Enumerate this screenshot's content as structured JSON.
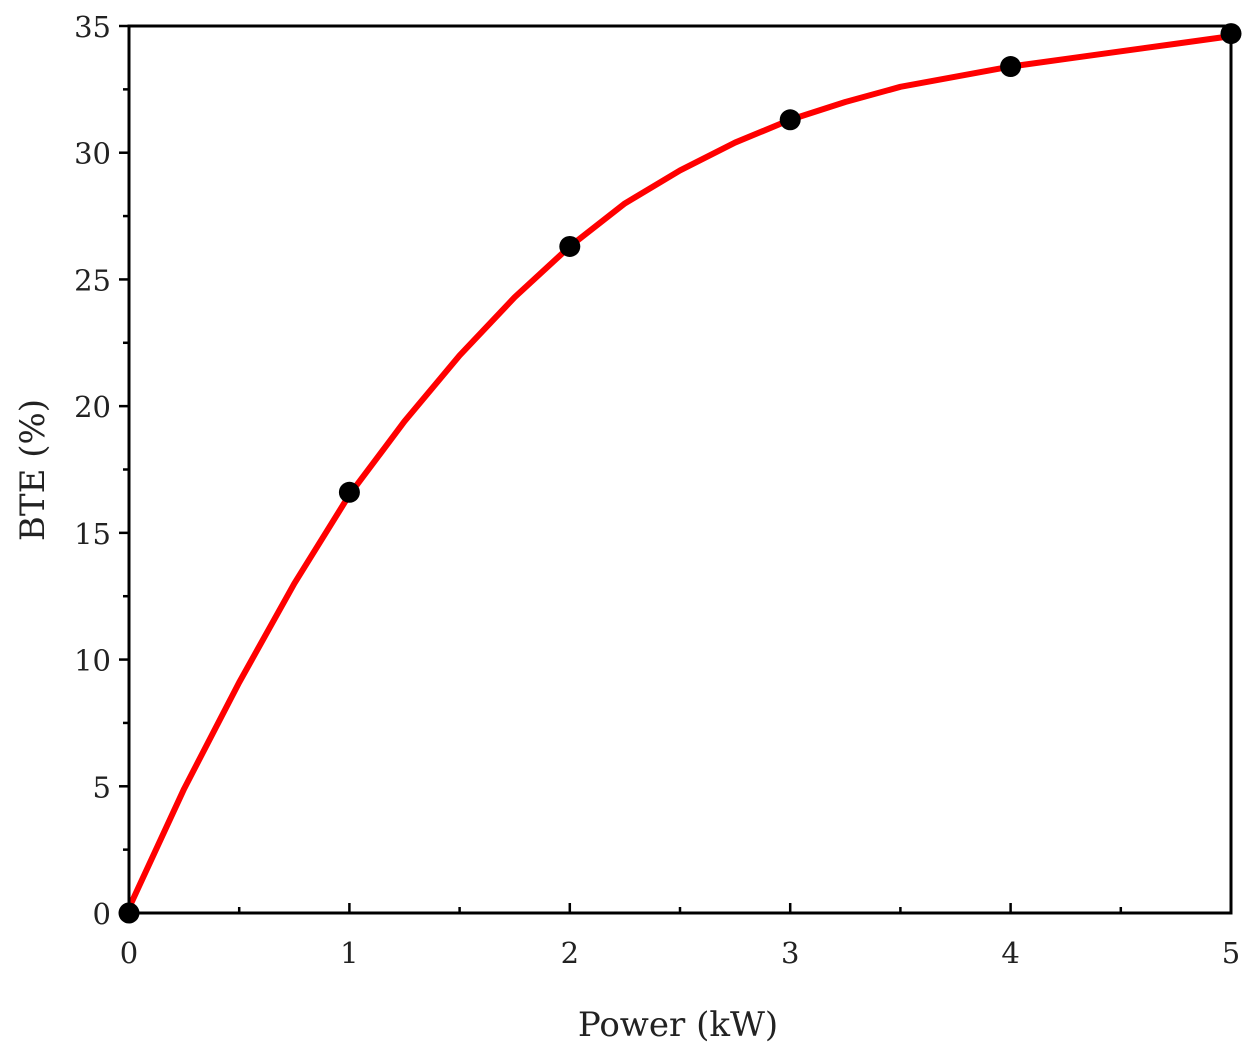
{
  "chart_data": {
    "type": "scatter",
    "title": "",
    "xlabel": "Power (kW)",
    "ylabel": "BTE (%)",
    "xlim": [
      0,
      5
    ],
    "ylim": [
      0,
      35
    ],
    "x_ticks": [
      0,
      1,
      2,
      3,
      4,
      5
    ],
    "y_ticks": [
      0,
      5,
      10,
      15,
      20,
      25,
      30,
      35
    ],
    "grid": false,
    "legend": "none",
    "series": [
      {
        "kind": "points",
        "color": "#000000",
        "x": [
          0,
          1,
          2,
          3,
          4,
          5
        ],
        "y": [
          0,
          16.6,
          26.3,
          31.3,
          33.4,
          34.7
        ]
      },
      {
        "kind": "fit-line",
        "color": "#ff0000",
        "x": [
          0,
          0.25,
          0.5,
          0.75,
          1,
          1.25,
          1.5,
          1.75,
          2,
          2.25,
          2.5,
          2.75,
          3,
          3.25,
          3.5,
          3.75,
          4,
          4.25,
          4.5,
          4.75,
          5
        ],
        "y": [
          0.2,
          4.9,
          9.1,
          13.0,
          16.5,
          19.4,
          22.0,
          24.3,
          26.3,
          28.0,
          29.3,
          30.4,
          31.3,
          32.0,
          32.6,
          33.0,
          33.4,
          33.7,
          34.0,
          34.3,
          34.6
        ]
      }
    ]
  }
}
